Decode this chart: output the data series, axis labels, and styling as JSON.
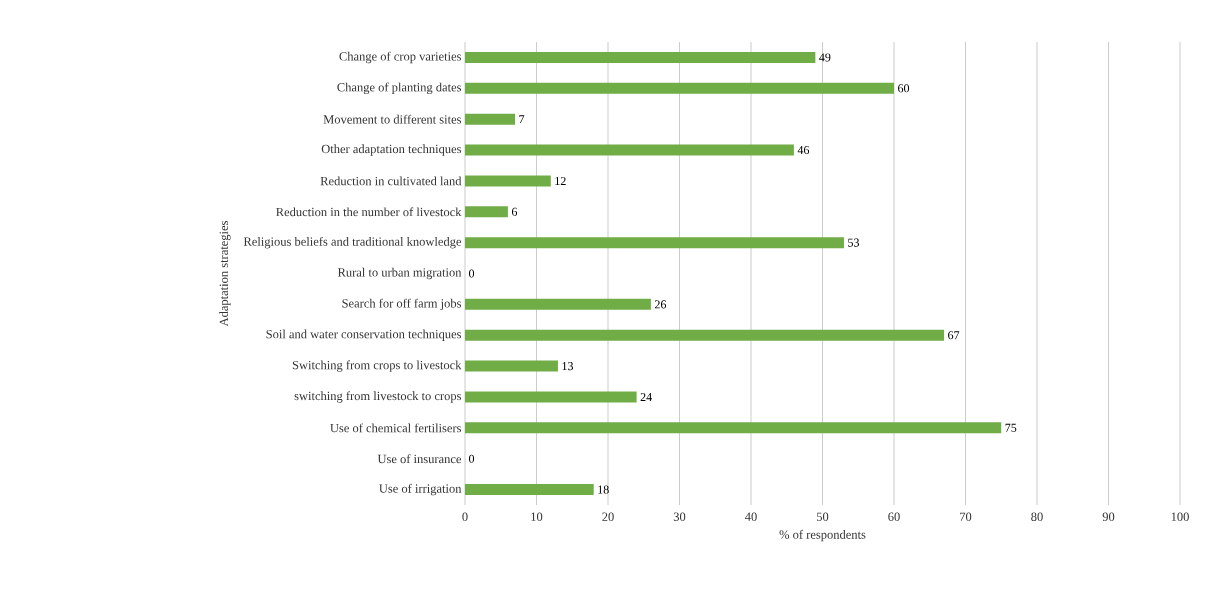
{
  "chart_data": {
    "type": "bar",
    "orientation": "horizontal",
    "categories": [
      "Change of crop varieties",
      "Change of planting dates",
      "Movement to different sites",
      "Other adaptation techniques",
      "Reduction in cultivated land",
      "Reduction in the number of livestock",
      "Religious beliefs and traditional knowledge",
      "Rural to urban migration",
      "Search for off farm jobs",
      "Soil and water conservation techniques",
      "Switching from crops to livestock",
      "switching from livestock to crops",
      "Use of chemical fertilisers",
      "Use of insurance",
      "Use of irrigation"
    ],
    "values": [
      49,
      60,
      7,
      46,
      12,
      6,
      53,
      0,
      26,
      67,
      13,
      24,
      75,
      0,
      18
    ],
    "color": "#70ad47",
    "xlim": [
      0,
      100
    ],
    "xticks": [
      0,
      10,
      20,
      30,
      40,
      50,
      60,
      70,
      80,
      90,
      100
    ],
    "xlabel": "% of respondents",
    "ylabel": "Adaptation strategies",
    "grid": "x",
    "data_labels": true
  }
}
